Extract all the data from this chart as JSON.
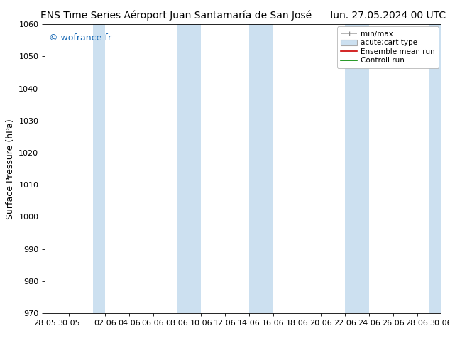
{
  "title_left": "ENS Time Series Aéroport Juan Santamaría de San José",
  "title_right": "lun. 27.05.2024 00 UTC",
  "ylabel": "Surface Pressure (hPa)",
  "ylim": [
    970,
    1060
  ],
  "yticks": [
    970,
    980,
    990,
    1000,
    1010,
    1020,
    1030,
    1040,
    1050,
    1060
  ],
  "xtick_labels": [
    "28.05",
    "30.05",
    "02.06",
    "04.06",
    "06.06",
    "08.06",
    "10.06",
    "12.06",
    "14.06",
    "16.06",
    "18.06",
    "20.06",
    "22.06",
    "24.06",
    "26.06",
    "28.06",
    "30.06"
  ],
  "xtick_days": [
    0,
    2,
    5,
    7,
    9,
    11,
    13,
    15,
    17,
    19,
    21,
    23,
    25,
    27,
    29,
    31,
    33
  ],
  "watermark": "© wofrance.fr",
  "watermark_color": "#1a6ab5",
  "bg_color": "#ffffff",
  "plot_bg_color": "#ffffff",
  "band_color": "#cce0f0",
  "legend_entries": [
    "min/max",
    "acute;cart type",
    "Ensemble mean run",
    "Controll run"
  ],
  "legend_colors_line": [
    "#888888",
    "#888888",
    "#cc0000",
    "#008800"
  ],
  "title_fontsize": 10,
  "ylabel_fontsize": 9,
  "tick_fontsize": 8,
  "legend_fontsize": 7.5,
  "band_starts_days": [
    4,
    11,
    17,
    25,
    32
  ],
  "band_ends_days": [
    5,
    13,
    19,
    27,
    34
  ],
  "xlim": [
    0,
    33
  ]
}
